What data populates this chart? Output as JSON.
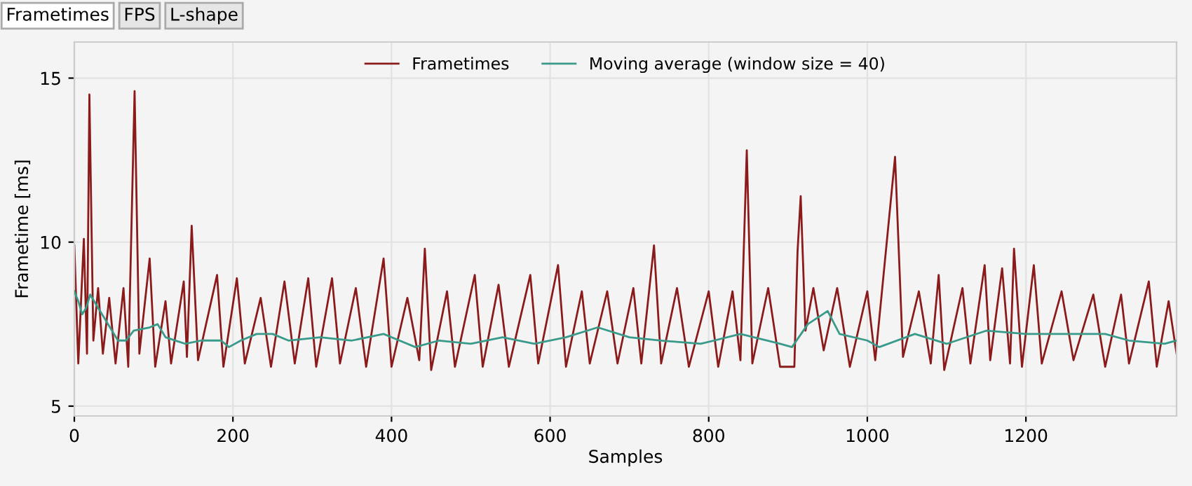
{
  "chart_data": {
    "type": "line",
    "xlabel": "Samples",
    "ylabel": "Frametime [ms]",
    "annotations": [
      "Frametimes",
      "FPS",
      "L-shape"
    ],
    "xlim": [
      0,
      1390
    ],
    "ylim": [
      4.7,
      16.1
    ],
    "xticks": [
      0,
      200,
      400,
      600,
      800,
      1000,
      1200
    ],
    "yticks": [
      5,
      10,
      15
    ],
    "grid": true,
    "legend": "top",
    "line_style": "solid",
    "marker": "none",
    "series": [
      {
        "name": "Frametimes",
        "color": "#8b1a1a",
        "x": [
          0,
          5,
          12,
          16,
          19,
          24,
          30,
          36,
          44,
          52,
          62,
          68,
          76,
          82,
          95,
          102,
          115,
          122,
          138,
          142,
          148,
          156,
          180,
          188,
          205,
          215,
          235,
          248,
          265,
          278,
          295,
          305,
          325,
          335,
          355,
          368,
          390,
          400,
          420,
          435,
          442,
          450,
          470,
          480,
          505,
          515,
          535,
          548,
          575,
          585,
          610,
          620,
          640,
          650,
          672,
          685,
          705,
          715,
          731,
          740,
          760,
          775,
          800,
          812,
          830,
          840,
          848,
          855,
          875,
          890,
          908,
          912,
          916,
          922,
          932,
          945,
          962,
          978,
          1000,
          1010,
          1035,
          1045,
          1065,
          1080,
          1090,
          1097,
          1120,
          1130,
          1148,
          1155,
          1170,
          1180,
          1185,
          1195,
          1210,
          1220,
          1245,
          1260,
          1285,
          1300,
          1320,
          1330,
          1355,
          1365,
          1380,
          1390
        ],
        "values": [
          9.9,
          6.3,
          10.1,
          6.6,
          14.5,
          7.0,
          8.6,
          6.6,
          8.3,
          6.3,
          8.6,
          6.2,
          14.6,
          6.6,
          9.5,
          6.2,
          8.2,
          6.3,
          8.8,
          6.5,
          10.5,
          6.4,
          9.0,
          6.2,
          8.9,
          6.3,
          8.3,
          6.2,
          8.8,
          6.3,
          8.9,
          6.2,
          8.9,
          6.3,
          8.6,
          6.2,
          9.5,
          6.2,
          8.3,
          6.4,
          9.8,
          6.1,
          8.5,
          6.2,
          9.0,
          6.2,
          8.7,
          6.2,
          9.0,
          6.3,
          9.3,
          6.2,
          8.5,
          6.3,
          8.5,
          6.3,
          8.6,
          6.3,
          9.9,
          6.3,
          8.6,
          6.2,
          8.5,
          6.2,
          8.5,
          6.4,
          12.8,
          6.3,
          8.6,
          6.2,
          6.2,
          9.7,
          11.4,
          7.3,
          8.6,
          6.7,
          8.6,
          6.2,
          8.5,
          6.4,
          12.6,
          6.5,
          8.5,
          6.3,
          9.0,
          6.1,
          8.6,
          6.3,
          9.3,
          6.4,
          9.2,
          6.3,
          9.8,
          6.2,
          9.3,
          6.3,
          8.5,
          6.4,
          8.4,
          6.2,
          8.4,
          6.3,
          8.8,
          6.2,
          8.2,
          6.6
        ]
      },
      {
        "name": "Moving average (window size = 40)",
        "color": "#3a9a8a",
        "x": [
          0,
          5,
          10,
          15,
          20,
          30,
          45,
          55,
          65,
          75,
          95,
          105,
          115,
          140,
          160,
          185,
          195,
          210,
          230,
          250,
          270,
          310,
          350,
          390,
          410,
          430,
          460,
          500,
          540,
          580,
          620,
          660,
          700,
          740,
          790,
          840,
          890,
          905,
          925,
          950,
          965,
          1000,
          1015,
          1060,
          1100,
          1150,
          1200,
          1250,
          1300,
          1330,
          1375,
          1390
        ],
        "values": [
          8.5,
          8.2,
          7.8,
          8.0,
          8.4,
          8.0,
          7.4,
          7.0,
          7.0,
          7.3,
          7.4,
          7.5,
          7.1,
          6.9,
          7.0,
          7.0,
          6.8,
          7.0,
          7.2,
          7.2,
          7.0,
          7.1,
          7.0,
          7.2,
          7.0,
          6.8,
          7.0,
          6.9,
          7.1,
          6.9,
          7.1,
          7.4,
          7.1,
          7.0,
          6.9,
          7.2,
          6.9,
          6.8,
          7.5,
          7.9,
          7.2,
          7.0,
          6.8,
          7.2,
          6.9,
          7.3,
          7.2,
          7.2,
          7.2,
          7.0,
          6.9,
          7.0
        ]
      }
    ]
  }
}
